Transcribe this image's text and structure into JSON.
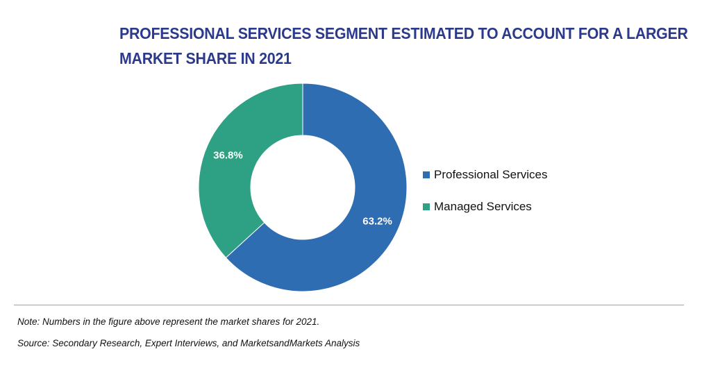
{
  "title_lines": [
    "PROFESSIONAL SERVICES SEGMENT ESTIMATED TO ACCOUNT FOR A LARGER",
    "MARKET SHARE IN 2021"
  ],
  "chart_data": {
    "type": "pie",
    "variant": "donut",
    "title": "PROFESSIONAL SERVICES SEGMENT ESTIMATED TO ACCOUNT FOR A LARGER MARKET SHARE IN 2021",
    "categories": [
      "Professional Services",
      "Managed Services"
    ],
    "values": [
      63.2,
      36.8
    ],
    "data_labels": [
      "63.2%",
      "36.8%"
    ],
    "unit": "%",
    "colors": [
      "#2f6db3",
      "#2ea184"
    ],
    "legend_position": "right"
  },
  "legend": [
    {
      "label": "Professional Services",
      "color": "#2f6db3"
    },
    {
      "label": "Managed Services",
      "color": "#2ea184"
    }
  ],
  "footer": {
    "note": "Note: Numbers in the figure above represent the market shares for 2021.",
    "source": "Source: Secondary Research, Expert Interviews, and MarketsandMarkets Analysis"
  },
  "colors": {
    "title": "#2b3a8c",
    "rule": "#c9a227"
  }
}
